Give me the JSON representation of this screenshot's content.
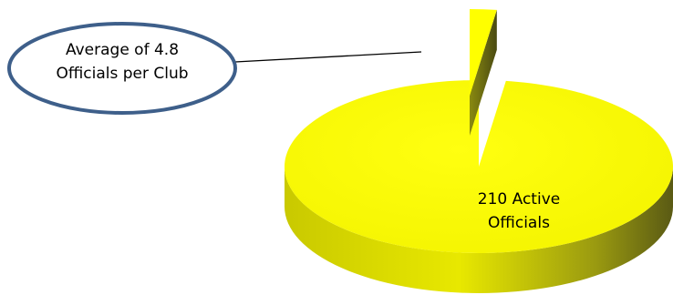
{
  "chart_data": {
    "type": "pie",
    "style": "3d-exploded",
    "slices": [
      {
        "value": 4.8,
        "label_lines": [
          "Average of 4.8",
          "Officials per Club"
        ],
        "color": "#ffff00",
        "exploded": true,
        "callout": "oval"
      },
      {
        "value": 210,
        "label_lines": [
          "210 Active",
          "Officials"
        ],
        "color": "#ffff00",
        "exploded": false
      }
    ]
  },
  "colors": {
    "slice_top": "#ffff00",
    "slice_side_light": "#d8d800",
    "slice_side_dark": "#6e6e12",
    "callout_border": "#3e5f8a"
  }
}
